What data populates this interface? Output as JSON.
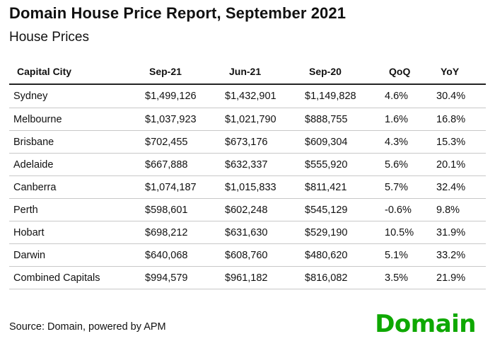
{
  "report": {
    "title": "Domain House Price Report, September 2021",
    "subtitle": "House Prices"
  },
  "table": {
    "headers": [
      "Capital City",
      "Sep-21",
      "Jun-21",
      "Sep-20",
      "QoQ",
      "YoY"
    ],
    "rows": [
      [
        "Sydney",
        "$1,499,126",
        "$1,432,901",
        "$1,149,828",
        "4.6%",
        "30.4%"
      ],
      [
        "Melbourne",
        "$1,037,923",
        "$1,021,790",
        "$888,755",
        "1.6%",
        "16.8%"
      ],
      [
        "Brisbane",
        "$702,455",
        "$673,176",
        "$609,304",
        "4.3%",
        "15.3%"
      ],
      [
        "Adelaide",
        "$667,888",
        "$632,337",
        "$555,920",
        "5.6%",
        "20.1%"
      ],
      [
        "Canberra",
        "$1,074,187",
        "$1,015,833",
        "$811,421",
        "5.7%",
        "32.4%"
      ],
      [
        "Perth",
        "$598,601",
        "$602,248",
        "$545,129",
        "-0.6%",
        "9.8%"
      ],
      [
        "Hobart",
        "$698,212",
        "$631,630",
        "$529,190",
        "10.5%",
        "31.9%"
      ],
      [
        "Darwin",
        "$640,068",
        "$608,760",
        "$480,620",
        "5.1%",
        "33.2%"
      ],
      [
        "Combined Capitals",
        "$994,579",
        "$961,182",
        "$816,082",
        "3.5%",
        "21.9%"
      ]
    ]
  },
  "footer": {
    "source": "Source: Domain, powered by APM",
    "logo_text": "Domain"
  },
  "colors": {
    "brand_green": "#0ea800",
    "text": "#111111",
    "row_divider": "#c8c8c8"
  }
}
